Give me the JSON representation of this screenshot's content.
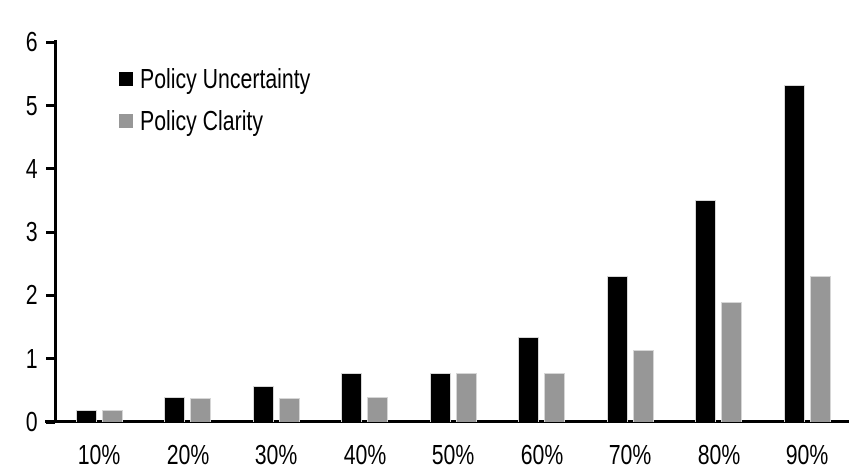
{
  "chart_data": {
    "type": "bar",
    "categories": [
      "10%",
      "20%",
      "30%",
      "40%",
      "50%",
      "60%",
      "70%",
      "80%",
      "90%"
    ],
    "series": [
      {
        "name": "Policy Uncertainty",
        "color": "#000000",
        "values": [
          0.19,
          0.39,
          0.57,
          0.77,
          0.78,
          1.34,
          2.31,
          3.5,
          5.33
        ]
      },
      {
        "name": "Policy Clarity",
        "color": "#979797",
        "values": [
          0.19,
          0.38,
          0.38,
          0.39,
          0.77,
          0.77,
          1.14,
          1.9,
          2.3
        ]
      }
    ],
    "title": "",
    "xlabel": "",
    "ylabel": "",
    "ylim": [
      0,
      6
    ],
    "yticks": [
      0,
      1,
      2,
      3,
      4,
      5,
      6
    ],
    "grid": false,
    "legend_position": "top-left",
    "background_color": "#ffffff",
    "axis_color": "#000000"
  }
}
